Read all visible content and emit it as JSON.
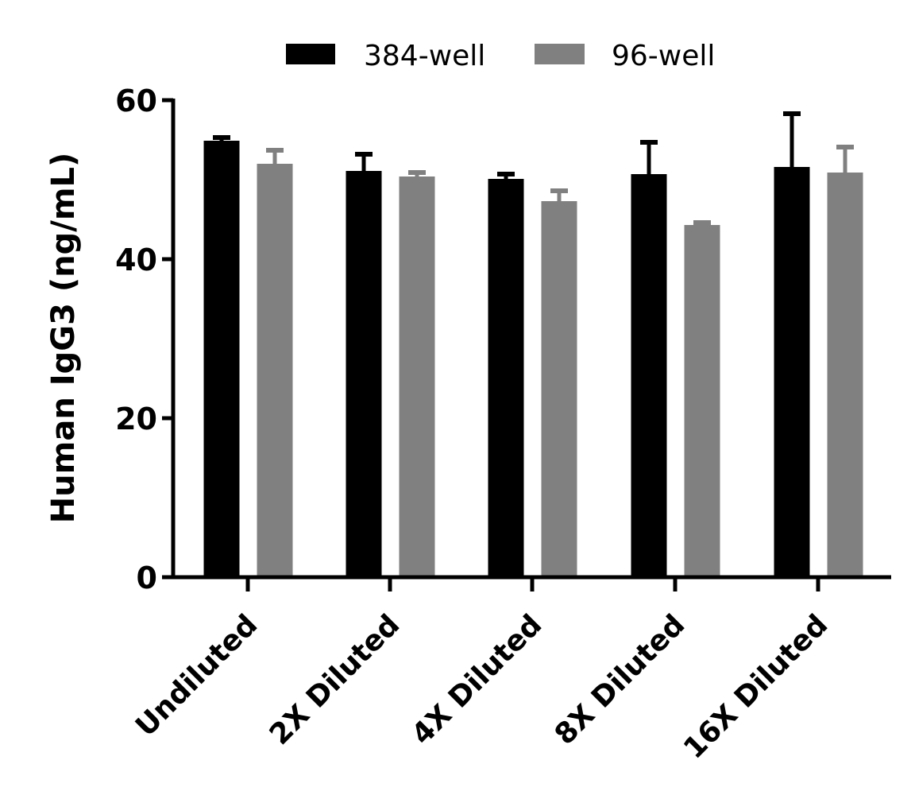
{
  "chart_data": {
    "type": "bar",
    "title": "",
    "xlabel": "",
    "ylabel": "Human IgG3 (ng/mL)",
    "ylim": [
      0,
      60
    ],
    "yticks": [
      "0",
      "20",
      "40",
      "60"
    ],
    "grid": false,
    "legend_placement": "top",
    "categories": [
      "Undiluted",
      "2X Diluted",
      "4X Diluted",
      "8X Diluted",
      "16X Diluted"
    ],
    "series": [
      {
        "name": "384-well",
        "color": "#000000",
        "values": [
          54.9,
          51.1,
          50.1,
          50.7,
          51.6
        ],
        "error": [
          0.4,
          2.1,
          0.6,
          4.0,
          6.7
        ]
      },
      {
        "name": "96-well",
        "color": "#808080",
        "values": [
          52.0,
          50.4,
          47.3,
          44.3,
          50.9
        ],
        "error": [
          1.7,
          0.5,
          1.3,
          0.3,
          3.2
        ]
      }
    ]
  }
}
